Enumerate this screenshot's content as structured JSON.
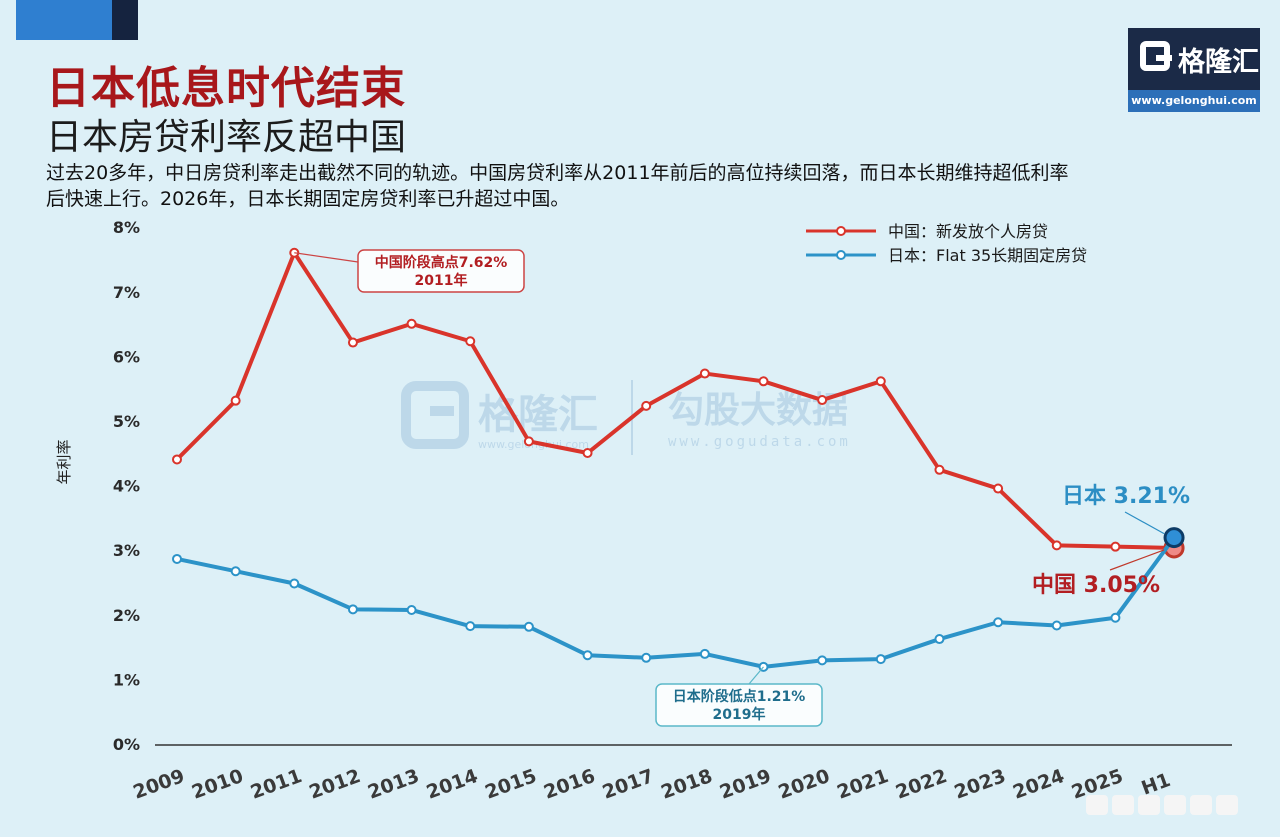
{
  "header": {
    "title": "日本低息时代结束",
    "subtitle": "日本房贷利率反超中国",
    "description": "过去20多年，中日房贷利率走出截然不同的轨迹。中国房贷利率从2011年前后的高位持续回落，而日本长期维持超低利率后快速上行。2026年，日本长期固定房贷利率已升超过中国。"
  },
  "logo": {
    "name": "格隆汇",
    "url": "www.gelonghui.com"
  },
  "watermark": {
    "brand": "格隆汇",
    "brand_url": "www.gelonghui.com",
    "data_brand": "勾股大数据",
    "data_url": "www.gogudata.com"
  },
  "chart_data": {
    "type": "line",
    "ylabel": "年利率",
    "xlabel": "",
    "ylim": [
      0,
      8
    ],
    "y_ticks": [
      "0%",
      "1%",
      "2%",
      "3%",
      "4%",
      "5%",
      "6%",
      "7%",
      "8%"
    ],
    "categories": [
      "2009",
      "2010",
      "2011",
      "2012",
      "2013",
      "2014",
      "2015",
      "2016",
      "2017",
      "2018",
      "2019",
      "2020",
      "2021",
      "2022",
      "2023",
      "2024",
      "2025",
      "H1"
    ],
    "legend_position": "top-right",
    "series": [
      {
        "name": "中国：新发放个人房贷",
        "color": "#d9342b",
        "values": [
          4.42,
          5.33,
          7.62,
          6.23,
          6.52,
          6.25,
          4.7,
          4.52,
          5.25,
          5.75,
          5.63,
          5.34,
          5.63,
          4.26,
          3.97,
          3.09,
          3.07,
          3.05
        ]
      },
      {
        "name": "日本：Flat 35长期固定房贷",
        "color": "#2c93c8",
        "values": [
          2.88,
          2.69,
          2.5,
          2.1,
          2.09,
          1.84,
          1.83,
          1.39,
          1.35,
          1.41,
          1.21,
          1.31,
          1.33,
          1.64,
          1.9,
          1.85,
          1.97,
          3.21
        ]
      }
    ],
    "annotations": [
      {
        "series": 0,
        "index": 2,
        "text": [
          "中国阶段高点7.62%",
          "2011年"
        ]
      },
      {
        "series": 1,
        "index": 10,
        "text": [
          "日本阶段低点1.21%",
          "2019年"
        ]
      }
    ],
    "end_labels": [
      {
        "series": 1,
        "text": "日本 3.21%",
        "color": "#2c8ec4"
      },
      {
        "series": 0,
        "text": "中国 3.05%",
        "color": "#b21e22"
      }
    ]
  }
}
